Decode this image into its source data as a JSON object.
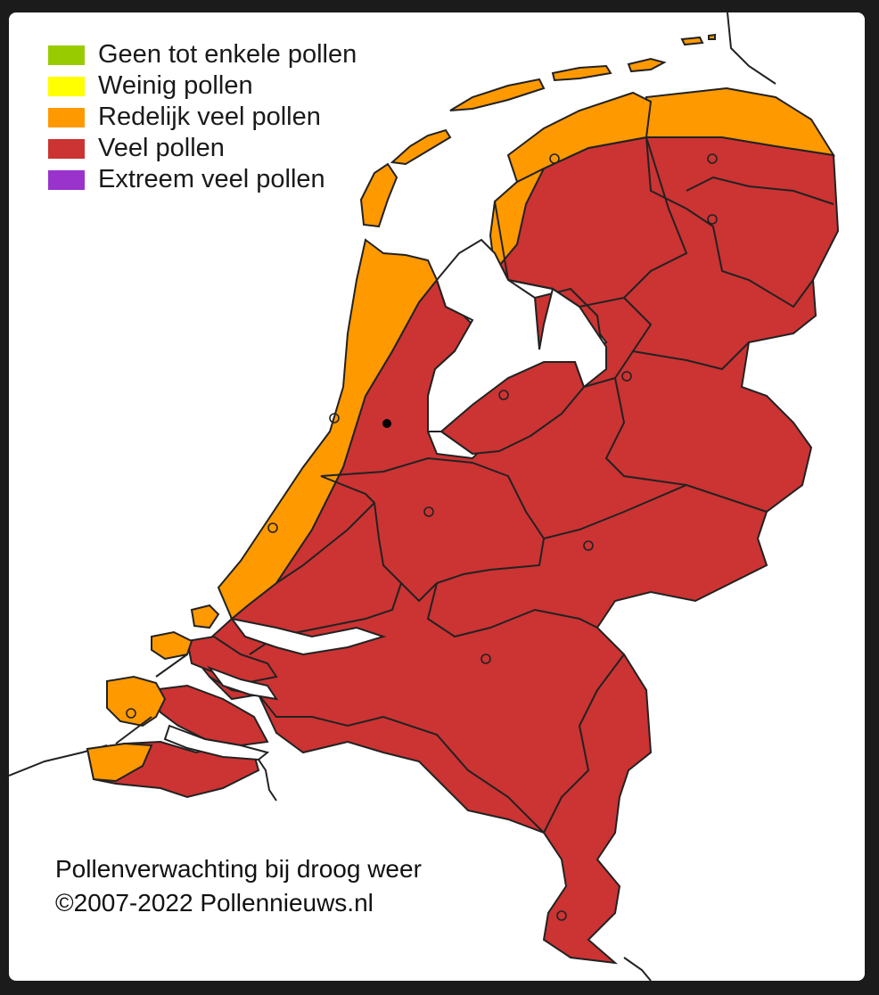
{
  "legend": {
    "items": [
      {
        "label": "Geen tot enkele pollen",
        "color": "#99cc00"
      },
      {
        "label": "Weinig pollen",
        "color": "#ffff00"
      },
      {
        "label": "Redelijk veel pollen",
        "color": "#ff9900"
      },
      {
        "label": "Veel pollen",
        "color": "#cc3333"
      },
      {
        "label": "Extreem veel pollen",
        "color": "#9933cc"
      }
    ]
  },
  "caption": {
    "line1": "Pollenverwachting bij droog weer",
    "line2": "©2007-2022  Pollennieuws.nl"
  },
  "colors": {
    "background": "#ffffff",
    "frame": "#1b1b1b",
    "border_lines": "#222222"
  }
}
